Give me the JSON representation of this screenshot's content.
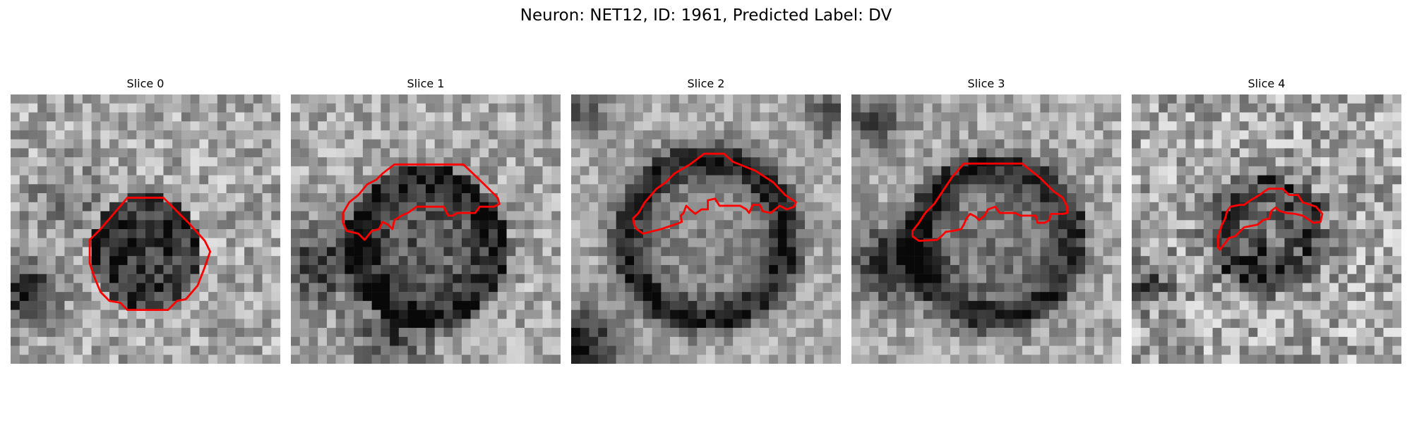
{
  "figure": {
    "title": "Neuron: NET12, ID: 1961, Predicted Label: DV"
  },
  "panels": [
    {
      "title": "Slice 0"
    },
    {
      "title": "Slice 1"
    },
    {
      "title": "Slice 2"
    },
    {
      "title": "Slice 3"
    },
    {
      "title": "Slice 4"
    }
  ],
  "colors": {
    "contour": "#ff0000",
    "background": "#ffffff"
  }
}
